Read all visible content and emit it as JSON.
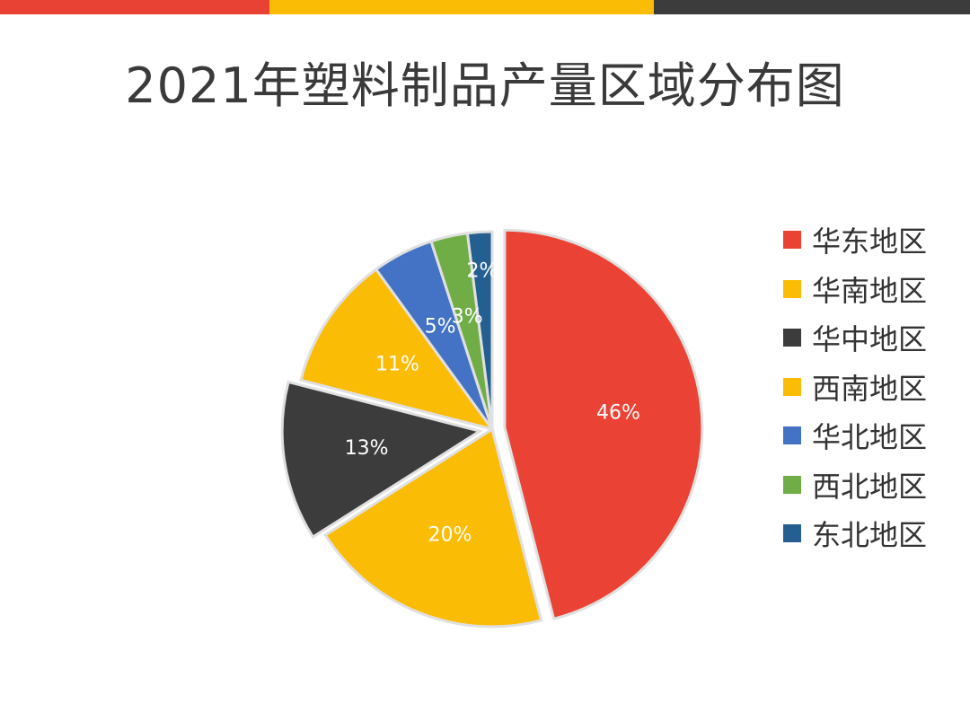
{
  "colors": {
    "bar_red": "#e84234",
    "bar_yellow": "#fbbc05",
    "bar_dark": "#3c3c3c"
  },
  "chart_data": {
    "type": "pie",
    "title": "2021年塑料制品产量区域分布图",
    "legend_position": "right",
    "slices": [
      {
        "label": "华东地区",
        "value": 46,
        "display": "46%",
        "color": "#ea4335"
      },
      {
        "label": "华南地区",
        "value": 20,
        "display": "20%",
        "color": "#fbbc05"
      },
      {
        "label": "华中地区",
        "value": 13,
        "display": "13%",
        "color": "#3c3c3c"
      },
      {
        "label": "西南地区",
        "value": 11,
        "display": "11%",
        "color": "#fbbc05"
      },
      {
        "label": "华北地区",
        "value": 5,
        "display": "5%",
        "color": "#4472c4"
      },
      {
        "label": "西北地区",
        "value": 3,
        "display": "3%",
        "color": "#70ad47"
      },
      {
        "label": "东北地区",
        "value": 2,
        "display": "2%",
        "color": "#255e91"
      }
    ]
  }
}
